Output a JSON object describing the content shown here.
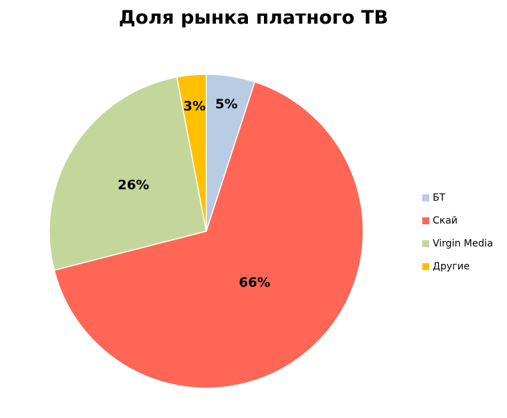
{
  "chart_data": {
    "type": "pie",
    "title": "Доля рынка платного ТВ",
    "categories": [
      "БТ",
      "Скай",
      "Virgin Media",
      "Другие"
    ],
    "values": [
      5,
      66,
      26,
      3
    ],
    "data_labels": [
      "5%",
      "66%",
      "26%",
      "3%"
    ],
    "colors": [
      "#b8cce4",
      "#ff6655",
      "#c4d79b",
      "#ffc000"
    ],
    "start_angle": "12 o'clock",
    "direction": "clockwise",
    "legend_position": "right"
  }
}
